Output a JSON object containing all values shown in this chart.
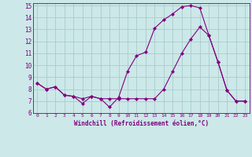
{
  "xlabel": "Windchill (Refroidissement éolien,°C)",
  "background_color": "#cce8e8",
  "grid_color": "#aacccc",
  "line_color": "#800080",
  "xlim": [
    -0.5,
    23.5
  ],
  "ylim": [
    6,
    15.2
  ],
  "xticks": [
    0,
    1,
    2,
    3,
    4,
    5,
    6,
    7,
    8,
    9,
    10,
    11,
    12,
    13,
    14,
    15,
    16,
    17,
    18,
    19,
    20,
    21,
    22,
    23
  ],
  "yticks": [
    6,
    7,
    8,
    9,
    10,
    11,
    12,
    13,
    14,
    15
  ],
  "series1_x": [
    0,
    1,
    2,
    3,
    4,
    5,
    6,
    7,
    8,
    9,
    10,
    11,
    12,
    13,
    14,
    15,
    16,
    17,
    18,
    19,
    20,
    21,
    22,
    23
  ],
  "series1_y": [
    8.5,
    8.0,
    8.2,
    7.5,
    7.4,
    6.8,
    7.4,
    7.2,
    6.5,
    7.3,
    9.5,
    10.8,
    11.1,
    13.1,
    13.8,
    14.3,
    14.9,
    15.0,
    14.8,
    12.5,
    10.3,
    7.9,
    7.0,
    7.0
  ],
  "series2_x": [
    0,
    1,
    2,
    3,
    4,
    5,
    6,
    7,
    8,
    9,
    10,
    11,
    12,
    13,
    14,
    15,
    16,
    17,
    18,
    19,
    20,
    21,
    22,
    23
  ],
  "series2_y": [
    8.5,
    8.0,
    8.2,
    7.5,
    7.4,
    7.2,
    7.4,
    7.2,
    7.2,
    7.2,
    7.2,
    7.2,
    7.2,
    7.2,
    8.0,
    9.5,
    11.0,
    12.2,
    13.2,
    12.5,
    10.3,
    7.9,
    7.0,
    7.0
  ]
}
